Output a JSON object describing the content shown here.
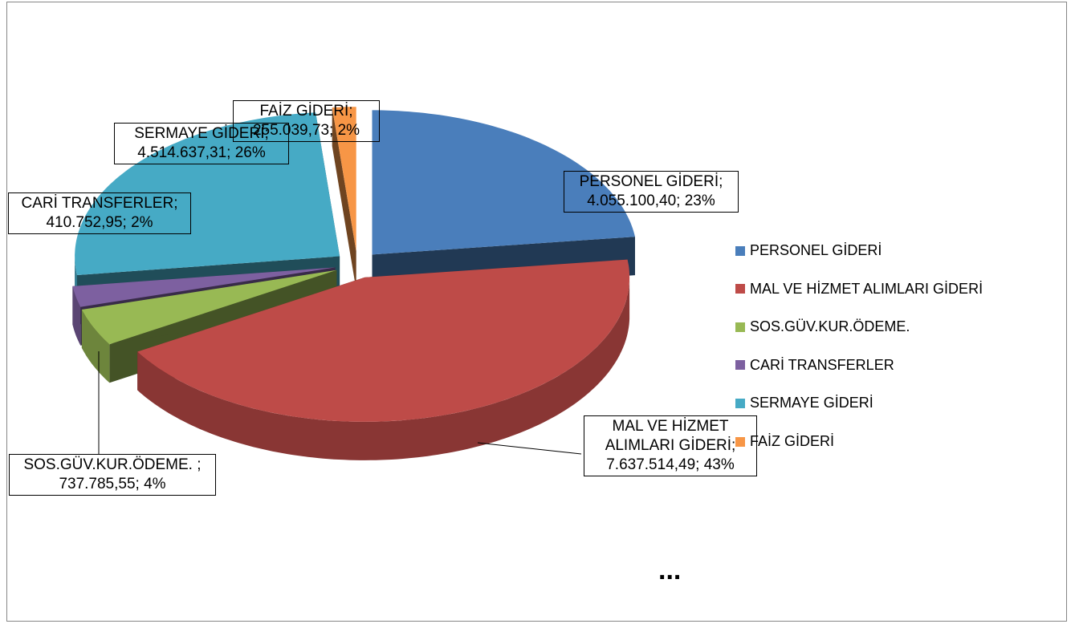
{
  "chart_data": {
    "type": "pie3d",
    "categories": [
      "PERSONEL GİDERİ",
      "MAL VE HİZMET ALIMLARI GİDERİ",
      "SOS.GÜV.KUR.ÖDEME.",
      "CARİ TRANSFERLER",
      "SERMAYE GİDERİ",
      "FAİZ GİDERİ"
    ],
    "values": [
      4055100.4,
      7637514.49,
      737785.55,
      410752.95,
      4514637.31,
      255039.73
    ],
    "value_labels": [
      "PERSONEL GİDERİ; 4.055.100,40; 23%",
      "MAL VE HİZMET ALIMLARI GİDERİ; 7.637.514,49; 43%",
      "SOS.GÜV.KUR.ÖDEME. ; 737.785,55; 4%",
      "CARİ TRANSFERLER; 410.752,95; 2%",
      "SERMAYE GİDERİ; 4.514.637,31; 26%",
      "FAİZ GİDERİ; 255.039,73; 2%"
    ],
    "colors": [
      "#4a7ebb",
      "#be4b48",
      "#98b954",
      "#7d60a0",
      "#46aac5",
      "#f79646"
    ],
    "legend": "right",
    "annotation": "..."
  }
}
